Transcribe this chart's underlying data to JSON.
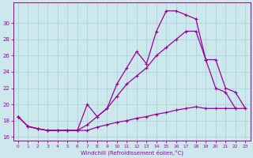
{
  "bg_color": "#cce8ed",
  "grid_color": "#aad4da",
  "line_color": "#990099",
  "xlabel": "Windchill (Refroidissement éolien,°C)",
  "xlim_min": -0.5,
  "xlim_max": 23.5,
  "ylim_min": 15.5,
  "ylim_max": 32.5,
  "yticks": [
    16,
    18,
    20,
    22,
    24,
    26,
    28,
    30
  ],
  "xticks": [
    0,
    1,
    2,
    3,
    4,
    5,
    6,
    7,
    8,
    9,
    10,
    11,
    12,
    13,
    14,
    15,
    16,
    17,
    18,
    19,
    20,
    21,
    22,
    23
  ],
  "line_flat_x": [
    0,
    1,
    2,
    3,
    4,
    5,
    6,
    7,
    8,
    9,
    10,
    11,
    12,
    13,
    14,
    15,
    16,
    17,
    18,
    19,
    20,
    21,
    22,
    23
  ],
  "line_flat_y": [
    18.5,
    17.3,
    17.0,
    16.8,
    16.8,
    16.8,
    16.8,
    16.8,
    17.2,
    17.5,
    17.8,
    18.0,
    18.3,
    18.5,
    18.8,
    19.0,
    19.3,
    19.5,
    19.7,
    19.5,
    19.5,
    19.5,
    19.5,
    19.5
  ],
  "line_mid_x": [
    0,
    1,
    2,
    3,
    4,
    5,
    6,
    7,
    8,
    9,
    10,
    11,
    12,
    13,
    14,
    15,
    16,
    17,
    18,
    19,
    20,
    21,
    22,
    23
  ],
  "line_mid_y": [
    18.5,
    17.3,
    17.0,
    16.8,
    16.8,
    16.8,
    16.8,
    17.5,
    18.5,
    19.5,
    21.0,
    22.5,
    23.5,
    24.5,
    26.0,
    27.0,
    28.0,
    29.0,
    29.0,
    25.5,
    25.5,
    22.0,
    21.5,
    19.5
  ],
  "line_top_x": [
    0,
    1,
    2,
    3,
    4,
    5,
    6,
    7,
    8,
    9,
    10,
    11,
    12,
    13,
    14,
    15,
    16,
    17,
    18,
    19,
    20,
    21,
    22
  ],
  "line_top_y": [
    18.5,
    17.3,
    17.0,
    16.8,
    16.8,
    16.8,
    16.8,
    20.0,
    18.5,
    19.5,
    22.5,
    24.5,
    26.5,
    25.0,
    29.0,
    31.5,
    31.5,
    31.0,
    30.5,
    25.5,
    22.0,
    21.5,
    19.5
  ]
}
